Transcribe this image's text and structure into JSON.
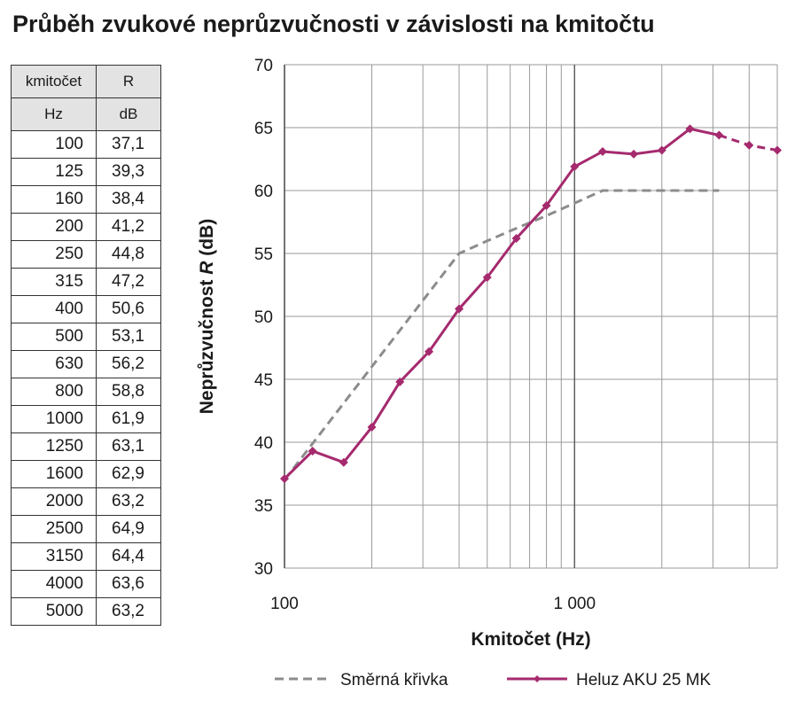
{
  "title": "Průběh zvukové neprůzvučnosti v závislosti na kmitočtu",
  "table": {
    "header1": [
      "kmitočet",
      "R"
    ],
    "header2": [
      "Hz",
      "dB"
    ],
    "rows": [
      [
        "100",
        "37,1"
      ],
      [
        "125",
        "39,3"
      ],
      [
        "160",
        "38,4"
      ],
      [
        "200",
        "41,2"
      ],
      [
        "250",
        "44,8"
      ],
      [
        "315",
        "47,2"
      ],
      [
        "400",
        "50,6"
      ],
      [
        "500",
        "53,1"
      ],
      [
        "630",
        "56,2"
      ],
      [
        "800",
        "58,8"
      ],
      [
        "1000",
        "61,9"
      ],
      [
        "1250",
        "63,1"
      ],
      [
        "1600",
        "62,9"
      ],
      [
        "2000",
        "63,2"
      ],
      [
        "2500",
        "64,9"
      ],
      [
        "3150",
        "64,4"
      ],
      [
        "4000",
        "63,6"
      ],
      [
        "5000",
        "63,2"
      ]
    ]
  },
  "chart_data": {
    "type": "line",
    "xscale": "log",
    "xlim": [
      100,
      5000
    ],
    "ylim": [
      30,
      70
    ],
    "yticks": [
      30,
      35,
      40,
      45,
      50,
      55,
      60,
      65,
      70
    ],
    "xticks": [
      100,
      1000
    ],
    "xtick_labels": [
      "100",
      "1 000"
    ],
    "xlabel": "Kmitočet (Hz)",
    "ylabel_main": "Neprůzvučnost ",
    "ylabel_var": "R",
    "ylabel_unit": " (dB)",
    "grid": true,
    "legend_position": "bottom",
    "series": [
      {
        "name": "Směrná křivka",
        "style": "dashed",
        "color": "#8c8c8c",
        "x": [
          100,
          400,
          500,
          630,
          800,
          1000,
          1250,
          1600,
          2000,
          2500,
          3150
        ],
        "y": [
          37,
          55,
          56,
          57,
          58,
          59,
          60,
          60,
          60,
          60,
          60
        ]
      },
      {
        "name": "Heluz AKU 25 MK",
        "style": "solid",
        "color": "#a52a6e",
        "x": [
          100,
          125,
          160,
          200,
          250,
          315,
          400,
          500,
          630,
          800,
          1000,
          1250,
          1600,
          2000,
          2500,
          3150,
          4000,
          5000
        ],
        "y": [
          37.1,
          39.3,
          38.4,
          41.2,
          44.8,
          47.2,
          50.6,
          53.1,
          56.2,
          58.8,
          61.9,
          63.1,
          62.9,
          63.2,
          64.9,
          64.4,
          63.6,
          63.2
        ],
        "dashed_from_x": 3150
      }
    ]
  }
}
